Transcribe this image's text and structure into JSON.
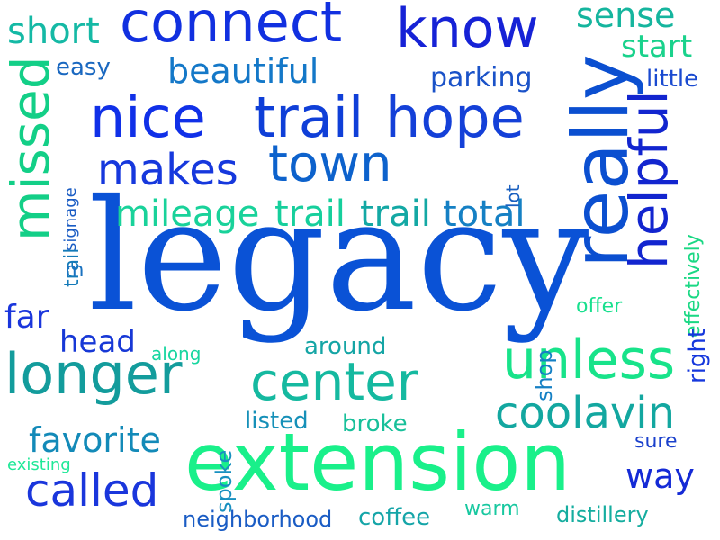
{
  "words": [
    {
      "text": "legacy",
      "color": "#0a52d6",
      "family": "serif"
    },
    {
      "text": "extension",
      "color": "#19f08a",
      "family": "sans"
    },
    {
      "text": "really",
      "color": "#0b4fd0",
      "family": "sans"
    },
    {
      "text": "connect",
      "color": "#1130e0",
      "family": "sans"
    },
    {
      "text": "know",
      "color": "#1622d6",
      "family": "sans"
    },
    {
      "text": "nice",
      "color": "#1030e8",
      "family": "sans"
    },
    {
      "text": "trail",
      "color": "#0f3fd8",
      "family": "sans"
    },
    {
      "text": "hope",
      "color": "#1440d8",
      "family": "sans"
    },
    {
      "text": "town",
      "color": "#0d62cc",
      "family": "sans"
    },
    {
      "text": "makes",
      "color": "#1638dd",
      "family": "sans"
    },
    {
      "text": "missed",
      "color": "#13cf87",
      "family": "sans"
    },
    {
      "text": "helpful",
      "color": "#1225cf",
      "family": "sans"
    },
    {
      "text": "unless",
      "color": "#18e38a",
      "family": "sans"
    },
    {
      "text": "longer",
      "color": "#139c9c",
      "family": "sans"
    },
    {
      "text": "center",
      "color": "#15b9a0",
      "family": "sans"
    },
    {
      "text": "coolavin",
      "color": "#13a7a0",
      "family": "sans"
    },
    {
      "text": "called",
      "color": "#1a36dc",
      "family": "sans"
    },
    {
      "text": "short",
      "color": "#15b9a5",
      "family": "sans"
    },
    {
      "text": "sense",
      "color": "#15b59e",
      "family": "sans"
    },
    {
      "text": "beautiful",
      "color": "#1478c8",
      "family": "sans"
    },
    {
      "text": "mileage",
      "color": "#19d29a",
      "family": "sans"
    },
    {
      "text": "trail",
      "color": "#16cf9c",
      "family": "sans"
    },
    {
      "text": "trail",
      "color": "#13a8a4",
      "family": "sans"
    },
    {
      "text": "total",
      "color": "#1580c4",
      "family": "sans"
    },
    {
      "text": "favorite",
      "color": "#138ab8",
      "family": "sans"
    },
    {
      "text": "head",
      "color": "#1738d6",
      "family": "sans"
    },
    {
      "text": "far",
      "color": "#1a36dc",
      "family": "sans"
    },
    {
      "text": "way",
      "color": "#142ad6",
      "family": "sans"
    },
    {
      "text": "start",
      "color": "#1ad28c",
      "family": "sans"
    },
    {
      "text": "parking",
      "color": "#1a52c8",
      "family": "sans"
    },
    {
      "text": "easy",
      "color": "#1a68c0",
      "family": "sans"
    },
    {
      "text": "little",
      "color": "#1a4ad0",
      "family": "sans"
    },
    {
      "text": "effectively",
      "color": "#1ad884",
      "family": "sans"
    },
    {
      "text": "right",
      "color": "#1638dd",
      "family": "sans"
    },
    {
      "text": "offer",
      "color": "#18e08e",
      "family": "sans"
    },
    {
      "text": "around",
      "color": "#15a5a5",
      "family": "sans"
    },
    {
      "text": "along",
      "color": "#18d6a0",
      "family": "sans"
    },
    {
      "text": "shop",
      "color": "#1580c4",
      "family": "sans"
    },
    {
      "text": "spoke",
      "color": "#1890c0",
      "family": "sans"
    },
    {
      "text": "listed",
      "color": "#1690b8",
      "family": "sans"
    },
    {
      "text": "broke",
      "color": "#18c09a",
      "family": "sans"
    },
    {
      "text": "sure",
      "color": "#1a40cc",
      "family": "sans"
    },
    {
      "text": "existing",
      "color": "#20e898",
      "family": "sans"
    },
    {
      "text": "neighborhood",
      "color": "#1a5cc4",
      "family": "sans"
    },
    {
      "text": "coffee",
      "color": "#15a5a8",
      "family": "sans"
    },
    {
      "text": "warm",
      "color": "#18c8a0",
      "family": "sans"
    },
    {
      "text": "distillery",
      "color": "#15ad9f",
      "family": "sans"
    },
    {
      "text": "signage",
      "color": "#1a5cc4",
      "family": "sans"
    },
    {
      "text": "trail",
      "color": "#147ab8",
      "family": "sans"
    },
    {
      "text": "lot",
      "color": "#1a60c0",
      "family": "sans"
    },
    {
      "text": "m",
      "color": "#1a72c0",
      "family": "sans"
    }
  ]
}
